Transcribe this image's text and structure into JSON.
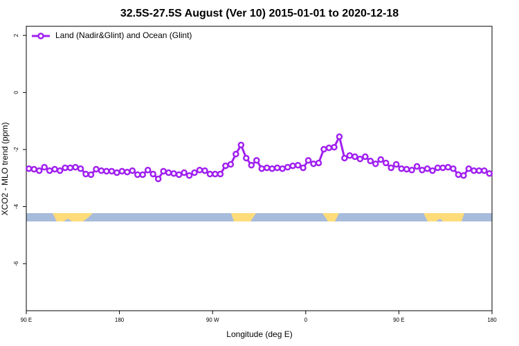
{
  "chart_data": {
    "type": "line",
    "title": "32.5S-27.5S August (Ver 10)   2015-01-01 to 2020-12-18",
    "x_label": "Longitude (deg E)",
    "y_label": "XCO2 - MLO trend (ppm)",
    "xlim": [
      90,
      540
    ],
    "ylim": [
      -7.65,
      2.32
    ],
    "xticks": [
      {
        "value": 90,
        "label": "90 E"
      },
      180,
      {
        "value": 270,
        "label": "90 W"
      },
      {
        "value": 360,
        "label": "0"
      },
      {
        "value": 450,
        "label": "90 E"
      },
      {
        "value": 540,
        "label": "180"
      }
    ],
    "yticks": [
      -6,
      -4,
      -2,
      0,
      2
    ],
    "legend": "top-left",
    "series": [
      {
        "name": "Land (Nadir&Glint) and Ocean (Glint)",
        "color": "#a020f0",
        "x": [
          92.5,
          97.5,
          102.5,
          107.5,
          112.5,
          117.5,
          122.5,
          127.5,
          132.5,
          137.5,
          142.5,
          147.5,
          152.5,
          157.5,
          162.5,
          167.5,
          172.5,
          177.5,
          182.5,
          187.5,
          192.5,
          197.5,
          202.5,
          207.5,
          212.5,
          217.5,
          222.5,
          227.5,
          232.5,
          237.5,
          242.5,
          247.5,
          252.5,
          257.5,
          262.5,
          267.5,
          272.5,
          277.5,
          282.5,
          287.5,
          292.5,
          297.5,
          302.5,
          307.5,
          312.5,
          317.5,
          322.5,
          327.5,
          332.5,
          337.5,
          342.5,
          347.5,
          352.5,
          357.5,
          362.5,
          367.5,
          372.5,
          377.5,
          382.5,
          387.5,
          392.5,
          397.5,
          402.5,
          407.5,
          412.5,
          417.5,
          422.5,
          427.5,
          432.5,
          437.5,
          442.5,
          447.5,
          452.5,
          457.5,
          462.5,
          467.5,
          472.5,
          477.5,
          482.5,
          487.5,
          492.5,
          497.5,
          502.5,
          507.5,
          512.5,
          517.5,
          522.5,
          527.5,
          532.5,
          537.5
        ],
        "values": [
          -2.67,
          -2.69,
          -2.74,
          -2.62,
          -2.74,
          -2.69,
          -2.74,
          -2.64,
          -2.64,
          -2.62,
          -2.67,
          -2.86,
          -2.88,
          -2.69,
          -2.74,
          -2.76,
          -2.76,
          -2.81,
          -2.76,
          -2.79,
          -2.74,
          -2.88,
          -2.88,
          -2.72,
          -2.86,
          -3.03,
          -2.76,
          -2.81,
          -2.84,
          -2.88,
          -2.81,
          -2.91,
          -2.81,
          -2.72,
          -2.74,
          -2.86,
          -2.86,
          -2.86,
          -2.57,
          -2.52,
          -2.16,
          -1.84,
          -2.3,
          -2.55,
          -2.38,
          -2.67,
          -2.64,
          -2.67,
          -2.64,
          -2.67,
          -2.62,
          -2.57,
          -2.55,
          -2.64,
          -2.38,
          -2.5,
          -2.47,
          -1.99,
          -1.94,
          -1.92,
          -1.55,
          -2.3,
          -2.21,
          -2.25,
          -2.33,
          -2.25,
          -2.4,
          -2.5,
          -2.35,
          -2.47,
          -2.64,
          -2.52,
          -2.67,
          -2.69,
          -2.72,
          -2.59,
          -2.72,
          -2.67,
          -2.74,
          -2.64,
          -2.64,
          -2.62,
          -2.67,
          -2.88,
          -2.91,
          -2.67,
          -2.74,
          -2.74,
          -2.74,
          -2.84
        ]
      }
    ]
  }
}
